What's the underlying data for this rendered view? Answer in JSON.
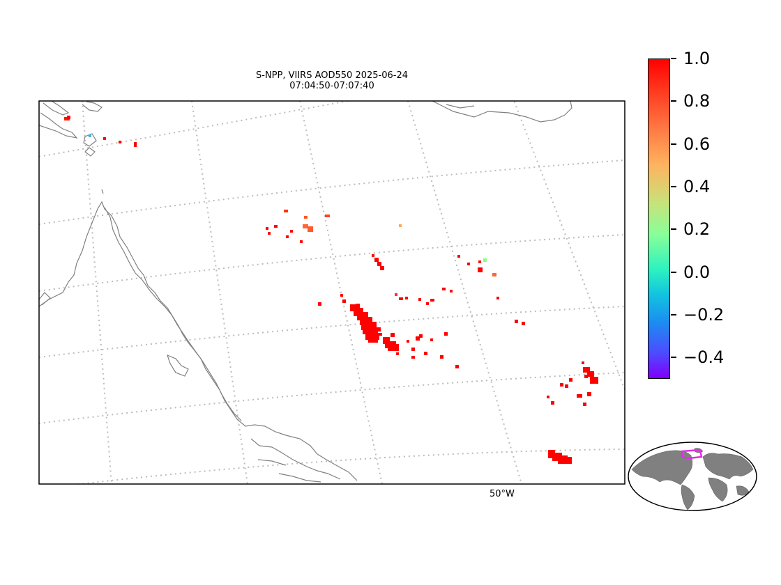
{
  "title": {
    "line1": "S-NPP, VIIRS AOD550 2025-06-24",
    "line2": "07:04:50-07:07:40"
  },
  "map": {
    "lon_label": "50°W",
    "colors": {
      "frame": "#000000",
      "coastline": "#808080",
      "graticule": "#bbbbbb",
      "land_inset": "#808080",
      "inset_box": "#e12ee6"
    }
  },
  "colorbar": {
    "colormap": "rainbow",
    "range": [
      -0.5,
      1.0
    ],
    "ticks": [
      "1.0",
      "0.8",
      "0.6",
      "0.4",
      "0.2",
      "0.0",
      "−0.2",
      "−0.4"
    ]
  }
}
